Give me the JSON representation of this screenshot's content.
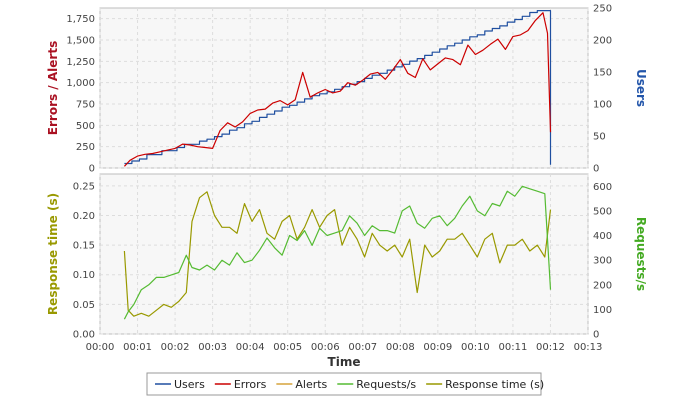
{
  "chart_data": [
    {
      "type": "line",
      "panel": "top",
      "left_axis": {
        "label": "Errors / Alerts",
        "color": "#aa1122",
        "ylim": [
          0,
          1875
        ],
        "ticks": [
          "0",
          "250",
          "500",
          "750",
          "1,000",
          "1,250",
          "1,500",
          "1,750"
        ]
      },
      "right_axis": {
        "label": "Users",
        "color": "#2255aa",
        "ylim": [
          0,
          250
        ],
        "ticks": [
          "0",
          "50",
          "100",
          "150",
          "200",
          "250"
        ]
      },
      "grid": true,
      "series": [
        {
          "name": "Users",
          "axis": "right",
          "color": "#1f4fa0",
          "step": true,
          "x": [
            0.65,
            0.85,
            1.05,
            1.25,
            1.45,
            1.65,
            1.85,
            2.05,
            2.25,
            2.45,
            2.65,
            2.85,
            3.05,
            3.25,
            3.45,
            3.65,
            3.85,
            4.05,
            4.25,
            4.45,
            4.65,
            4.85,
            5.05,
            5.25,
            5.45,
            5.65,
            5.85,
            6.05,
            6.25,
            6.45,
            6.65,
            6.85,
            7.05,
            7.25,
            7.45,
            7.65,
            7.85,
            8.05,
            8.25,
            8.45,
            8.65,
            8.85,
            9.05,
            9.25,
            9.45,
            9.65,
            9.85,
            10.05,
            10.25,
            10.45,
            10.65,
            10.85,
            11.05,
            11.25,
            11.45,
            11.65,
            11.9,
            12.0
          ],
          "y": [
            7,
            11,
            14,
            21,
            21,
            27,
            27,
            32,
            37,
            37,
            42,
            45,
            49,
            53,
            59,
            63,
            69,
            73,
            79,
            84,
            89,
            95,
            98,
            103,
            108,
            113,
            116,
            119,
            123,
            127,
            131,
            135,
            140,
            145,
            148,
            153,
            158,
            162,
            167,
            171,
            176,
            181,
            186,
            191,
            195,
            200,
            205,
            208,
            214,
            218,
            222,
            228,
            232,
            237,
            243,
            246,
            246,
            5
          ]
        },
        {
          "name": "Errors",
          "axis": "left",
          "color": "#cc0000",
          "x": [
            0.65,
            0.8,
            1.0,
            1.2,
            1.4,
            1.6,
            1.8,
            2.0,
            2.2,
            2.4,
            2.6,
            2.8,
            3.0,
            3.2,
            3.4,
            3.6,
            3.8,
            4.0,
            4.2,
            4.4,
            4.6,
            4.8,
            5.0,
            5.2,
            5.4,
            5.6,
            5.8,
            6.0,
            6.2,
            6.4,
            6.6,
            6.8,
            7.0,
            7.2,
            7.4,
            7.6,
            7.8,
            8.0,
            8.2,
            8.4,
            8.6,
            8.8,
            9.0,
            9.2,
            9.4,
            9.6,
            9.8,
            10.0,
            10.2,
            10.4,
            10.6,
            10.8,
            11.0,
            11.2,
            11.4,
            11.6,
            11.8,
            11.92,
            12.0
          ],
          "y": [
            20,
            90,
            140,
            160,
            170,
            190,
            210,
            230,
            280,
            270,
            250,
            240,
            230,
            440,
            530,
            480,
            540,
            640,
            680,
            690,
            760,
            790,
            740,
            800,
            1120,
            830,
            880,
            920,
            880,
            900,
            1000,
            970,
            1030,
            1100,
            1120,
            1040,
            1150,
            1270,
            1110,
            1060,
            1280,
            1150,
            1220,
            1290,
            1270,
            1210,
            1440,
            1330,
            1380,
            1450,
            1510,
            1390,
            1540,
            1560,
            1610,
            1730,
            1820,
            1580,
            420
          ]
        }
      ]
    },
    {
      "type": "line",
      "panel": "bottom",
      "left_axis": {
        "label": "Response time (s)",
        "color": "#999900",
        "ylim": [
          0,
          0.27
        ],
        "ticks": [
          "0.00",
          "0.05",
          "0.10",
          "0.15",
          "0.20",
          "0.25"
        ]
      },
      "right_axis": {
        "label": "Requests/s",
        "color": "#44aa22",
        "ylim": [
          0,
          650
        ],
        "ticks": [
          "0",
          "100",
          "200",
          "300",
          "400",
          "500",
          "600"
        ]
      },
      "x_axis": {
        "label": "Time",
        "ticks": [
          "00:00",
          "00:01",
          "00:02",
          "00:03",
          "00:04",
          "00:05",
          "00:06",
          "00:07",
          "00:08",
          "00:09",
          "00:10",
          "00:11",
          "00:12",
          "00:13"
        ],
        "xlim": [
          0,
          13
        ]
      },
      "grid": true,
      "series": [
        {
          "name": "Response time (s)",
          "axis": "left",
          "color": "#999900",
          "x": [
            0.65,
            0.75,
            0.9,
            1.1,
            1.3,
            1.5,
            1.7,
            1.9,
            2.1,
            2.3,
            2.45,
            2.65,
            2.85,
            3.05,
            3.25,
            3.45,
            3.65,
            3.85,
            4.05,
            4.25,
            4.45,
            4.65,
            4.85,
            5.05,
            5.25,
            5.45,
            5.65,
            5.85,
            6.05,
            6.25,
            6.45,
            6.65,
            6.85,
            7.05,
            7.25,
            7.45,
            7.65,
            7.85,
            8.05,
            8.25,
            8.45,
            8.65,
            8.85,
            9.05,
            9.25,
            9.45,
            9.65,
            9.85,
            10.05,
            10.25,
            10.45,
            10.65,
            10.85,
            11.05,
            11.25,
            11.45,
            11.65,
            11.85,
            12.0
          ],
          "y": [
            0.14,
            0.04,
            0.03,
            0.035,
            0.03,
            0.04,
            0.05,
            0.045,
            0.055,
            0.07,
            0.19,
            0.23,
            0.24,
            0.2,
            0.18,
            0.18,
            0.17,
            0.22,
            0.19,
            0.21,
            0.17,
            0.16,
            0.19,
            0.2,
            0.16,
            0.18,
            0.21,
            0.18,
            0.2,
            0.21,
            0.15,
            0.18,
            0.16,
            0.13,
            0.17,
            0.15,
            0.14,
            0.15,
            0.13,
            0.16,
            0.07,
            0.15,
            0.13,
            0.14,
            0.16,
            0.16,
            0.17,
            0.15,
            0.13,
            0.16,
            0.17,
            0.12,
            0.15,
            0.15,
            0.16,
            0.14,
            0.15,
            0.13,
            0.21
          ]
        },
        {
          "name": "Requests/s",
          "axis": "right",
          "color": "#55bb33",
          "x": [
            0.65,
            0.75,
            0.9,
            1.1,
            1.3,
            1.5,
            1.7,
            1.9,
            2.1,
            2.3,
            2.45,
            2.65,
            2.85,
            3.05,
            3.25,
            3.45,
            3.65,
            3.85,
            4.05,
            4.25,
            4.45,
            4.65,
            4.85,
            5.05,
            5.25,
            5.45,
            5.65,
            5.85,
            6.05,
            6.25,
            6.45,
            6.65,
            6.85,
            7.05,
            7.25,
            7.45,
            7.65,
            7.85,
            8.05,
            8.25,
            8.45,
            8.65,
            8.85,
            9.05,
            9.25,
            9.45,
            9.65,
            9.85,
            10.05,
            10.25,
            10.45,
            10.65,
            10.85,
            11.05,
            11.25,
            11.45,
            11.65,
            11.85,
            12.0
          ],
          "y": [
            60,
            90,
            120,
            180,
            200,
            230,
            230,
            240,
            250,
            320,
            270,
            260,
            280,
            260,
            300,
            280,
            330,
            290,
            300,
            340,
            390,
            350,
            320,
            400,
            380,
            420,
            360,
            430,
            400,
            410,
            420,
            480,
            450,
            400,
            440,
            420,
            420,
            410,
            500,
            520,
            450,
            430,
            470,
            480,
            440,
            470,
            520,
            560,
            500,
            480,
            530,
            520,
            580,
            560,
            600,
            590,
            580,
            570,
            180
          ]
        }
      ]
    }
  ],
  "legend": {
    "items": [
      {
        "label": "Users",
        "color": "#1f4fa0"
      },
      {
        "label": "Errors",
        "color": "#cc0000"
      },
      {
        "label": "Alerts",
        "color": "#d6a43b"
      },
      {
        "label": "Requests/s",
        "color": "#55bb33"
      },
      {
        "label": "Response time (s)",
        "color": "#999900"
      }
    ]
  }
}
